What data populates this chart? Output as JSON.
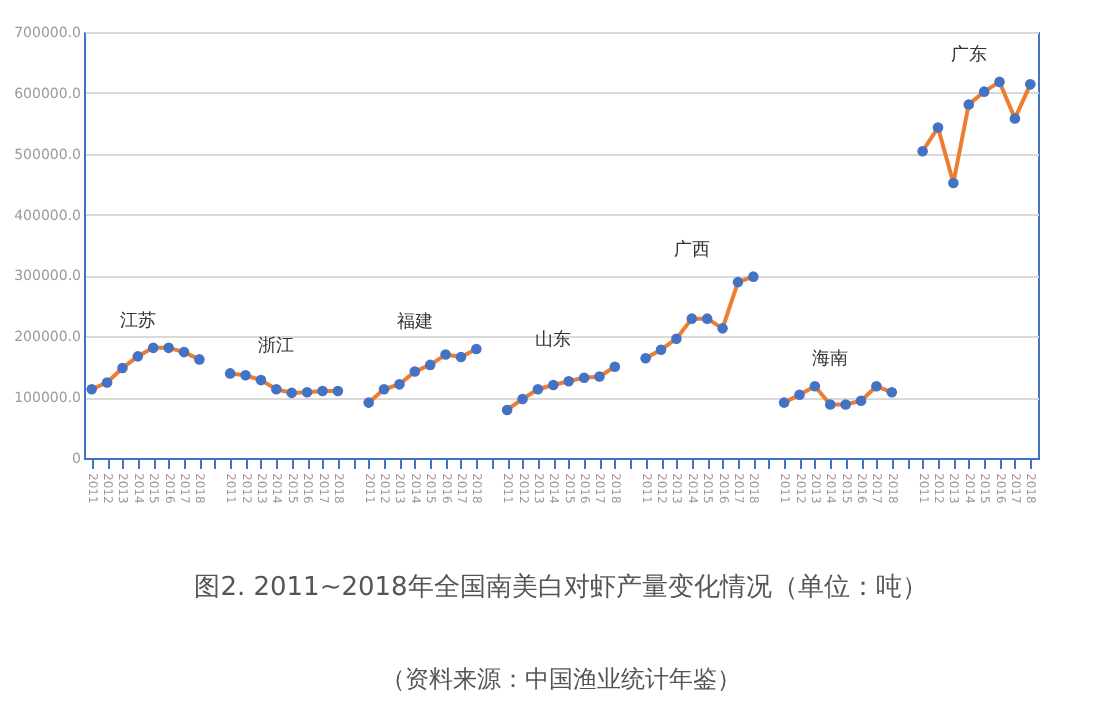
{
  "chart_data": {
    "type": "line",
    "title": "图2. 2011~2018年全国南美白对虾产量变化情况（单位：吨）",
    "annotations": [
      "（资料来源：中国渔业统计年鉴）"
    ],
    "categories": [
      "2011",
      "2012",
      "2013",
      "2014",
      "2015",
      "2016",
      "2017",
      "2018",
      null,
      "2011",
      "2012",
      "2013",
      "2014",
      "2015",
      "2016",
      "2017",
      "2018",
      null,
      "2011",
      "2012",
      "2013",
      "2014",
      "2015",
      "2016",
      "2017",
      "2018",
      null,
      "2011",
      "2012",
      "2013",
      "2014",
      "2015",
      "2016",
      "2017",
      "2018",
      null,
      "2011",
      "2012",
      "2013",
      "2014",
      "2015",
      "2016",
      "2017",
      "2018",
      null,
      "2011",
      "2012",
      "2013",
      "2014",
      "2015",
      "2016",
      "2017",
      "2018",
      null,
      "2011",
      "2012",
      "2013",
      "2014",
      "2015",
      "2016",
      "2017",
      "2018"
    ],
    "series": [
      {
        "name": "江苏",
        "color": "#ed7d31",
        "values": [
          113000,
          124000,
          148000,
          167000,
          181000,
          181000,
          174000,
          162000,
          null,
          null,
          null,
          null,
          null,
          null,
          null,
          null,
          null,
          null,
          null,
          null,
          null,
          null,
          null,
          null,
          null,
          null,
          null,
          null,
          null,
          null,
          null,
          null,
          null,
          null,
          null,
          null,
          null,
          null,
          null,
          null,
          null,
          null,
          null,
          null,
          null,
          null,
          null,
          null,
          null,
          null,
          null,
          null,
          null,
          null,
          null,
          null,
          null,
          null,
          null,
          null,
          null,
          null
        ]
      },
      {
        "name": "浙江",
        "color": "#ed7d31",
        "values": [
          null,
          null,
          null,
          null,
          null,
          null,
          null,
          null,
          null,
          139000,
          136000,
          128000,
          113000,
          107000,
          108000,
          110000,
          110000,
          null,
          null,
          null,
          null,
          null,
          null,
          null,
          null,
          null,
          null,
          null,
          null,
          null,
          null,
          null,
          null,
          null,
          null,
          null,
          null,
          null,
          null,
          null,
          null,
          null,
          null,
          null,
          null,
          null,
          null,
          null,
          null,
          null,
          null,
          null,
          null,
          null,
          null,
          null,
          null,
          null,
          null,
          null,
          null,
          null
        ]
      },
      {
        "name": "福建",
        "color": "#ed7d31",
        "values": [
          null,
          null,
          null,
          null,
          null,
          null,
          null,
          null,
          null,
          null,
          null,
          null,
          null,
          null,
          null,
          null,
          null,
          null,
          91000,
          113000,
          121000,
          142000,
          153000,
          170000,
          166000,
          179000,
          null,
          null,
          null,
          null,
          null,
          null,
          null,
          null,
          null,
          null,
          null,
          null,
          null,
          null,
          null,
          null,
          null,
          null,
          null,
          null,
          null,
          null,
          null,
          null,
          null,
          null,
          null,
          null,
          null,
          null,
          null,
          null,
          null,
          null,
          null,
          null
        ]
      },
      {
        "name": "山东",
        "color": "#ed7d31",
        "values": [
          null,
          null,
          null,
          null,
          null,
          null,
          null,
          null,
          null,
          null,
          null,
          null,
          null,
          null,
          null,
          null,
          null,
          null,
          null,
          null,
          null,
          null,
          null,
          null,
          null,
          null,
          null,
          79000,
          97000,
          113000,
          120000,
          126000,
          132000,
          134000,
          150000,
          null,
          null,
          null,
          null,
          null,
          null,
          null,
          null,
          null,
          null,
          null,
          null,
          null,
          null,
          null,
          null,
          null,
          null,
          null,
          null,
          null,
          null,
          null,
          null,
          null,
          null,
          null
        ]
      },
      {
        "name": "广西",
        "color": "#ed7d31",
        "values": [
          null,
          null,
          null,
          null,
          null,
          null,
          null,
          null,
          null,
          null,
          null,
          null,
          null,
          null,
          null,
          null,
          null,
          null,
          null,
          null,
          null,
          null,
          null,
          null,
          null,
          null,
          null,
          null,
          null,
          null,
          null,
          null,
          null,
          null,
          null,
          null,
          164000,
          178000,
          196000,
          229000,
          229000,
          213000,
          289000,
          298000,
          null,
          null,
          null,
          null,
          null,
          null,
          null,
          null,
          null,
          null,
          null,
          null,
          null,
          null,
          null,
          null,
          null,
          null
        ]
      },
      {
        "name": "海南",
        "color": "#ed7d31",
        "values": [
          null,
          null,
          null,
          null,
          null,
          null,
          null,
          null,
          null,
          null,
          null,
          null,
          null,
          null,
          null,
          null,
          null,
          null,
          null,
          null,
          null,
          null,
          null,
          null,
          null,
          null,
          null,
          null,
          null,
          null,
          null,
          null,
          null,
          null,
          null,
          null,
          null,
          null,
          null,
          null,
          null,
          null,
          null,
          null,
          null,
          91000,
          104000,
          118000,
          88000,
          88000,
          94000,
          118000,
          108000,
          null,
          null,
          null,
          null,
          null,
          null,
          null,
          null,
          null
        ]
      },
      {
        "name": "广东",
        "color": "#ed7d31",
        "values": [
          null,
          null,
          null,
          null,
          null,
          null,
          null,
          null,
          null,
          null,
          null,
          null,
          null,
          null,
          null,
          null,
          null,
          null,
          null,
          null,
          null,
          null,
          null,
          null,
          null,
          null,
          null,
          null,
          null,
          null,
          null,
          null,
          null,
          null,
          null,
          null,
          null,
          null,
          null,
          null,
          null,
          null,
          null,
          null,
          null,
          null,
          null,
          null,
          null,
          null,
          null,
          null,
          null,
          null,
          504000,
          543000,
          452000,
          581000,
          602000,
          618000,
          558000,
          614000
        ]
      }
    ],
    "ylim": [
      0,
      700000
    ],
    "yticks": [
      0,
      {
        "value": 100000,
        "label": "100000.0"
      },
      {
        "value": 200000,
        "label": "200000.0"
      },
      {
        "value": 300000,
        "label": "300000.0"
      },
      {
        "value": 400000,
        "label": "400000.0"
      },
      {
        "value": 500000,
        "label": "500000.0"
      },
      {
        "value": 600000,
        "label": "600000.0"
      },
      {
        "value": 700000,
        "label": "700000.0"
      }
    ],
    "grid": "y",
    "legend": false,
    "marker": "circle",
    "line_style": "solid"
  }
}
